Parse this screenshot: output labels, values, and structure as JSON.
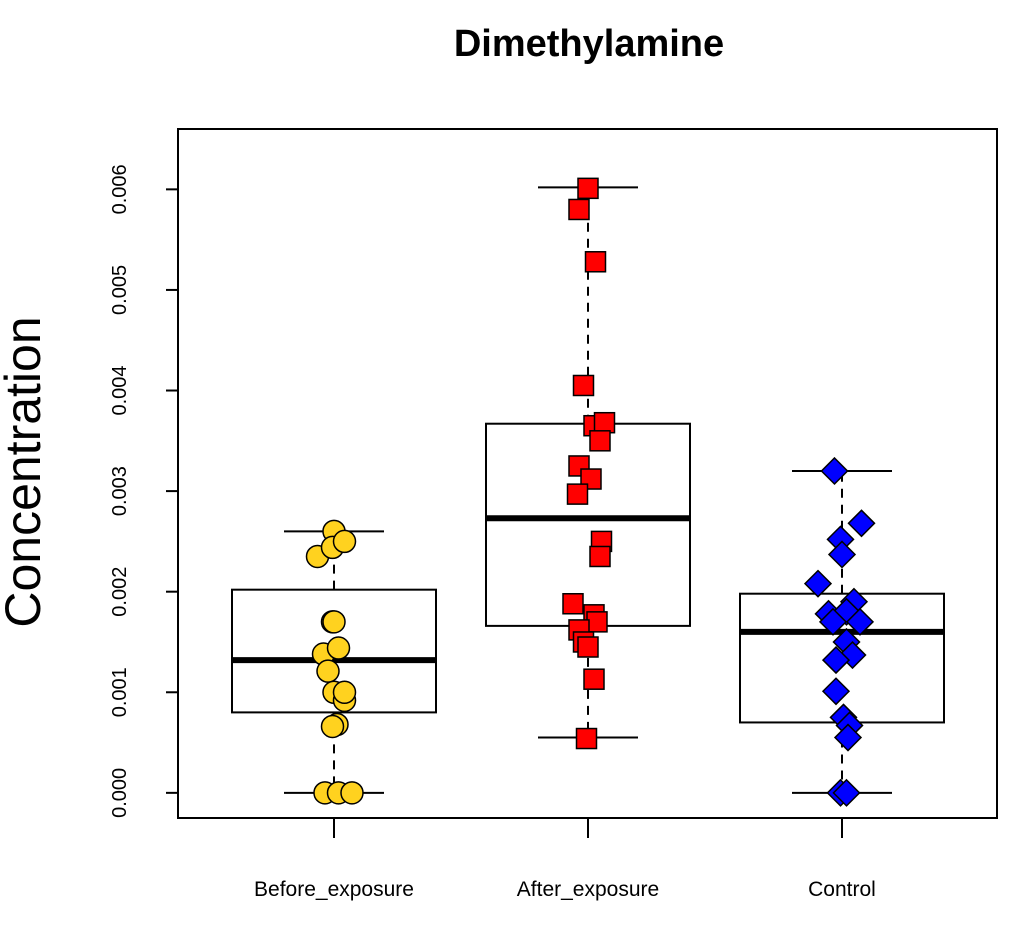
{
  "chart_data": {
    "type": "box",
    "title": "Dimethylamine",
    "xlabel": "",
    "ylabel": "Concentration",
    "ylim": [
      -0.00025,
      0.0066
    ],
    "yticks": [
      0,
      0.001,
      0.002,
      0.003,
      0.004,
      0.005,
      0.006
    ],
    "ytick_labels": [
      "0.000",
      "0.001",
      "0.002",
      "0.003",
      "0.004",
      "0.005",
      "0.006"
    ],
    "grid": false,
    "legend": "none",
    "categories": [
      "Before_exposure",
      "After_exposure",
      "Control"
    ],
    "series": [
      {
        "box": {
          "whisker_low": 0.0,
          "q1": 0.0008,
          "median": 0.00132,
          "q3": 0.00202,
          "whisker_high": 0.0026
        },
        "marker": "circle",
        "color": "#FFD21F",
        "points": [
          [
            0.0,
            0.0026
          ],
          [
            -0.11,
            0.00235
          ],
          [
            -0.01,
            0.00244
          ],
          [
            0.07,
            0.0025
          ],
          [
            -0.01,
            0.0017
          ],
          [
            0.0,
            0.0017
          ],
          [
            -0.07,
            0.00138
          ],
          [
            0.03,
            0.00144
          ],
          [
            -0.04,
            0.00121
          ],
          [
            0.0,
            0.001
          ],
          [
            0.07,
            0.00092
          ],
          [
            0.07,
            0.001
          ],
          [
            0.02,
            0.00068
          ],
          [
            -0.01,
            0.00066
          ],
          [
            -0.06,
            0.0
          ],
          [
            0.03,
            0.0
          ],
          [
            0.12,
            0.0
          ]
        ]
      },
      {
        "box": {
          "whisker_low": 0.00055,
          "q1": 0.00166,
          "median": 0.00273,
          "q3": 0.00367,
          "whisker_high": 0.00602
        },
        "marker": "square",
        "color": "#FF0000",
        "points": [
          [
            0.0,
            0.00601
          ],
          [
            -0.06,
            0.0058
          ],
          [
            0.05,
            0.00528
          ],
          [
            -0.03,
            0.00405
          ],
          [
            0.04,
            0.00365
          ],
          [
            0.11,
            0.00368
          ],
          [
            0.08,
            0.0035
          ],
          [
            -0.06,
            0.00325
          ],
          [
            0.02,
            0.00312
          ],
          [
            -0.07,
            0.00297
          ],
          [
            0.09,
            0.0025
          ],
          [
            0.08,
            0.00235
          ],
          [
            -0.1,
            0.00188
          ],
          [
            0.04,
            0.00177
          ],
          [
            0.06,
            0.0017
          ],
          [
            -0.06,
            0.00162
          ],
          [
            -0.03,
            0.0015
          ],
          [
            0.0,
            0.00145
          ],
          [
            0.04,
            0.00113
          ],
          [
            -0.01,
            0.00054
          ]
        ]
      },
      {
        "box": {
          "whisker_low": 0.0,
          "q1": 0.0007,
          "median": 0.0016,
          "q3": 0.00198,
          "whisker_high": 0.0032
        },
        "marker": "diamond",
        "color": "#0000FF",
        "points": [
          [
            -0.05,
            0.0032
          ],
          [
            0.13,
            0.00268
          ],
          [
            -0.01,
            0.00252
          ],
          [
            0.0,
            0.00237
          ],
          [
            -0.16,
            0.00208
          ],
          [
            0.08,
            0.0019
          ],
          [
            -0.09,
            0.00178
          ],
          [
            0.03,
            0.0018
          ],
          [
            -0.06,
            0.0017
          ],
          [
            0.12,
            0.0017
          ],
          [
            0.03,
            0.0015
          ],
          [
            0.07,
            0.00137
          ],
          [
            -0.04,
            0.00132
          ],
          [
            -0.04,
            0.00101
          ],
          [
            0.01,
            0.00075
          ],
          [
            0.05,
            0.00067
          ],
          [
            0.04,
            0.00055
          ],
          [
            -0.01,
            0.0
          ],
          [
            0.03,
            0.0
          ]
        ]
      }
    ]
  }
}
